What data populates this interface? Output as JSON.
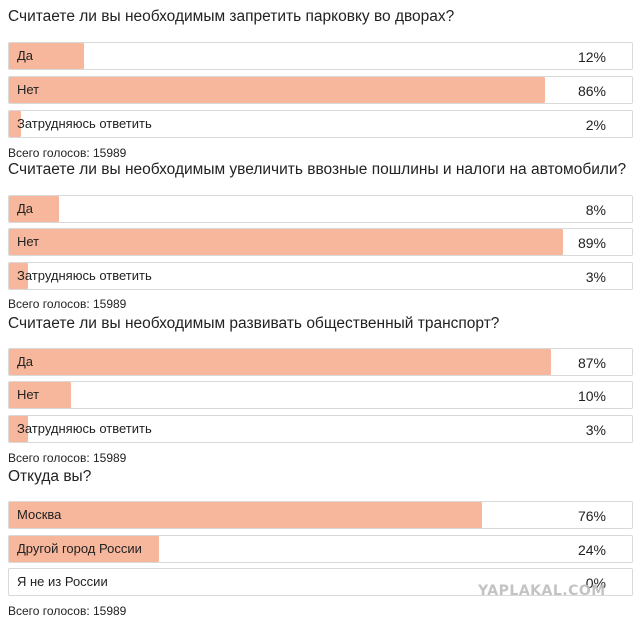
{
  "polls": [
    {
      "question": "Считаете ли вы необходимым запретить парковку во дворах?",
      "options": [
        {
          "label": "Да",
          "percent_text": "12%",
          "percent": 12
        },
        {
          "label": "Нет",
          "percent_text": "86%",
          "percent": 86
        },
        {
          "label": "Затрудняюсь ответить",
          "percent_text": "2%",
          "percent": 2
        }
      ],
      "total": "Всего голосов: 15989"
    },
    {
      "question": "Считаете ли вы необходимым увеличить ввозные пошлины и налоги на автомобили?",
      "options": [
        {
          "label": "Да",
          "percent_text": "8%",
          "percent": 8
        },
        {
          "label": "Нет",
          "percent_text": "89%",
          "percent": 89
        },
        {
          "label": "Затрудняюсь ответить",
          "percent_text": "3%",
          "percent": 3
        }
      ],
      "total": "Всего голосов: 15989"
    },
    {
      "question": "Считаете ли вы необходимым развивать общественный транспорт?",
      "options": [
        {
          "label": "Да",
          "percent_text": "87%",
          "percent": 87
        },
        {
          "label": "Нет",
          "percent_text": "10%",
          "percent": 10
        },
        {
          "label": "Затрудняюсь ответить",
          "percent_text": "3%",
          "percent": 3
        }
      ],
      "total": "Всего голосов: 15989"
    },
    {
      "question": "Откуда вы?",
      "options": [
        {
          "label": "Москва",
          "percent_text": "76%",
          "percent": 76
        },
        {
          "label": "Другой город России",
          "percent_text": "24%",
          "percent": 24
        },
        {
          "label": "Я не из России",
          "percent_text": "0%",
          "percent": 0
        }
      ],
      "total": "Всего голосов: 15989"
    }
  ],
  "watermark": "YAPLAKAL.COM",
  "colors": {
    "bar_fill": "#f7b79c",
    "border": "#d9d9d9"
  }
}
